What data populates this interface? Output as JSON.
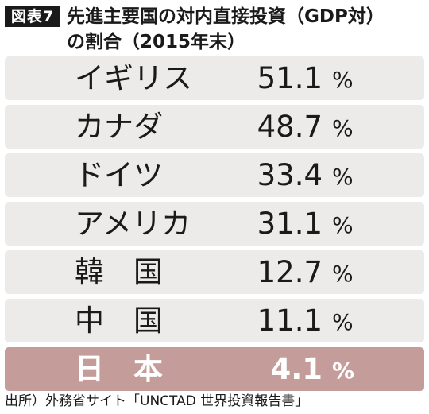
{
  "header": {
    "badge": "図表7",
    "title_line1": "先進主要国の対内直接投資（GDP対）",
    "title_line2": "の割合（2015年末）"
  },
  "chart_data": {
    "type": "table",
    "unit": "%",
    "rows": [
      {
        "country": "イギリス",
        "value": "51.1",
        "highlight": false
      },
      {
        "country": "カナダ",
        "value": "48.7",
        "highlight": false
      },
      {
        "country": "ドイツ",
        "value": "33.4",
        "highlight": false
      },
      {
        "country": "アメリカ",
        "value": "31.1",
        "highlight": false
      },
      {
        "country": "韓　国",
        "value": "12.7",
        "highlight": false
      },
      {
        "country": "中　国",
        "value": "11.1",
        "highlight": false
      },
      {
        "country": "日　本",
        "value": "4.1",
        "highlight": true
      }
    ],
    "row_color": "#ecebea",
    "highlight_color": "#c49c99"
  },
  "source": "出所）外務省サイト「UNCTAD 世界投資報告書」"
}
